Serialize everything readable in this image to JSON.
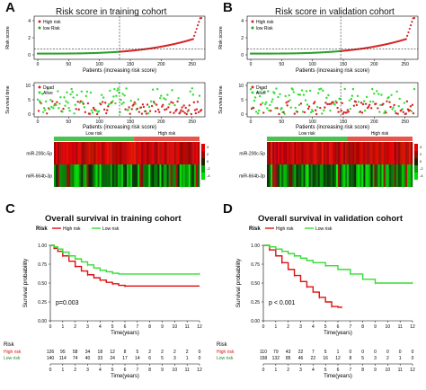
{
  "panels": {
    "A": {
      "letter": "A",
      "title": "Risk score in training cohort",
      "score_ylabel": "Risk score",
      "score_yticks": [
        "0",
        "2",
        "4"
      ],
      "time_ylabel": "Survival time",
      "time_yticks": [
        "0",
        "5",
        "10"
      ],
      "xlabel": "Patients (increasing risk score)",
      "xticks": [
        "0",
        "50",
        "100",
        "150",
        "200",
        "250"
      ],
      "legend_score": [
        "High risk",
        "low Risk"
      ],
      "legend_time": [
        "Dead",
        "Alive"
      ],
      "heat_groups": [
        "Low risk",
        "High risk"
      ],
      "heat_rows": [
        "miR-200c-5p",
        "miR-664b-3p"
      ],
      "heat_scale": [
        "4",
        "2",
        "0",
        "-2",
        "-4"
      ]
    },
    "B": {
      "letter": "B",
      "title": "Risk score in validation cohort",
      "score_ylabel": "Risk score",
      "score_yticks": [
        "0",
        "2",
        "4"
      ],
      "time_ylabel": "Survival time",
      "time_yticks": [
        "0",
        "5",
        "10"
      ],
      "xlabel": "Patients (increasing risk score)",
      "xticks": [
        "0",
        "50",
        "100",
        "150",
        "200",
        "250"
      ],
      "legend_score": [
        "High risk",
        "low Risk"
      ],
      "legend_time": [
        "Dead",
        "Alive"
      ],
      "heat_groups": [
        "Low risk",
        "High risk"
      ],
      "heat_rows": [
        "miR-200c-5p",
        "miR-664b-3p"
      ],
      "heat_scale": [
        "4",
        "2",
        "0",
        "-2",
        "-4"
      ]
    },
    "C": {
      "letter": "C",
      "title": "Overall survival in training cohort",
      "legend_title": "Risk",
      "legend": [
        "High risk",
        "Low risk"
      ],
      "ylabel": "Survival probability",
      "yticks": [
        "0.00",
        "0.25",
        "0.50",
        "0.75",
        "1.00"
      ],
      "xlabel": "Time(years)",
      "xticks": [
        "0",
        "1",
        "2",
        "3",
        "4",
        "5",
        "6",
        "7",
        "8",
        "9",
        "10",
        "11",
        "12"
      ],
      "pvalue": "p=0.003",
      "table_title": "Risk",
      "table_rows": [
        {
          "label": "High risk",
          "values": [
            "126",
            "95",
            "58",
            "34",
            "18",
            "12",
            "8",
            "5",
            "2",
            "2",
            "2",
            "2",
            "0"
          ]
        },
        {
          "label": "Low risk",
          "values": [
            "140",
            "114",
            "74",
            "40",
            "33",
            "24",
            "17",
            "14",
            "6",
            "5",
            "3",
            "1",
            "0"
          ]
        }
      ],
      "table_xlabel": "Time(years)"
    },
    "D": {
      "letter": "D",
      "title": "Overall survival in validation cohort",
      "legend_title": "Risk",
      "legend": [
        "High risk",
        "Low risk"
      ],
      "ylabel": "Survival probability",
      "yticks": [
        "0.00",
        "0.25",
        "0.50",
        "0.75",
        "1.00"
      ],
      "xlabel": "Time(years)",
      "xticks": [
        "0",
        "1",
        "2",
        "3",
        "4",
        "5",
        "6",
        "7",
        "8",
        "9",
        "10",
        "11",
        "12"
      ],
      "pvalue": "p < 0.001",
      "table_title": "Risk",
      "table_rows": [
        {
          "label": "High risk",
          "values": [
            "110",
            "79",
            "43",
            "22",
            "7",
            "5",
            "1",
            "0",
            "0",
            "0",
            "0",
            "0",
            "0"
          ]
        },
        {
          "label": "Low risk",
          "values": [
            "158",
            "132",
            "85",
            "46",
            "22",
            "16",
            "12",
            "8",
            "5",
            "3",
            "2",
            "1",
            "0"
          ]
        }
      ],
      "table_xlabel": "Time(years)"
    }
  },
  "colors": {
    "high": "#d62728",
    "low": "#2ca02c",
    "green_light": "#33dd33",
    "red": "#dd1111"
  },
  "chart_data": [
    {
      "panel": "C",
      "type": "line",
      "x_unit": "years",
      "xlim": [
        0,
        12
      ],
      "ylim": [
        0,
        1
      ],
      "series": [
        {
          "name": "High risk",
          "x": [
            0,
            0.3,
            0.6,
            1,
            1.5,
            2,
            2.5,
            3,
            3.5,
            4,
            4.5,
            5,
            5.5,
            6,
            12
          ],
          "y": [
            1,
            0.96,
            0.92,
            0.86,
            0.79,
            0.72,
            0.66,
            0.61,
            0.57,
            0.54,
            0.51,
            0.49,
            0.47,
            0.46,
            0.46
          ]
        },
        {
          "name": "Low risk",
          "x": [
            0,
            0.3,
            0.6,
            1,
            1.5,
            2,
            2.5,
            3,
            3.5,
            4,
            4.5,
            5,
            5.5,
            12
          ],
          "y": [
            1,
            0.98,
            0.95,
            0.91,
            0.86,
            0.82,
            0.78,
            0.74,
            0.7,
            0.67,
            0.65,
            0.63,
            0.62,
            0.62
          ]
        }
      ]
    },
    {
      "panel": "D",
      "type": "line",
      "x_unit": "years",
      "xlim": [
        0,
        12
      ],
      "ylim": [
        0,
        1
      ],
      "series": [
        {
          "name": "High risk",
          "x": [
            0,
            0.5,
            1,
            1.5,
            2,
            2.5,
            3,
            3.5,
            4,
            4.5,
            5,
            5.5,
            6,
            6.3
          ],
          "y": [
            1,
            0.94,
            0.86,
            0.77,
            0.68,
            0.6,
            0.52,
            0.45,
            0.38,
            0.31,
            0.25,
            0.19,
            0.18,
            0.18
          ]
        },
        {
          "name": "Low risk",
          "x": [
            0,
            0.5,
            1,
            1.5,
            2,
            2.5,
            3,
            3.5,
            4,
            5,
            6,
            7,
            8,
            9,
            10,
            12
          ],
          "y": [
            1,
            0.98,
            0.95,
            0.92,
            0.89,
            0.86,
            0.83,
            0.8,
            0.77,
            0.73,
            0.68,
            0.62,
            0.55,
            0.5,
            0.5,
            0.5
          ]
        }
      ]
    }
  ]
}
